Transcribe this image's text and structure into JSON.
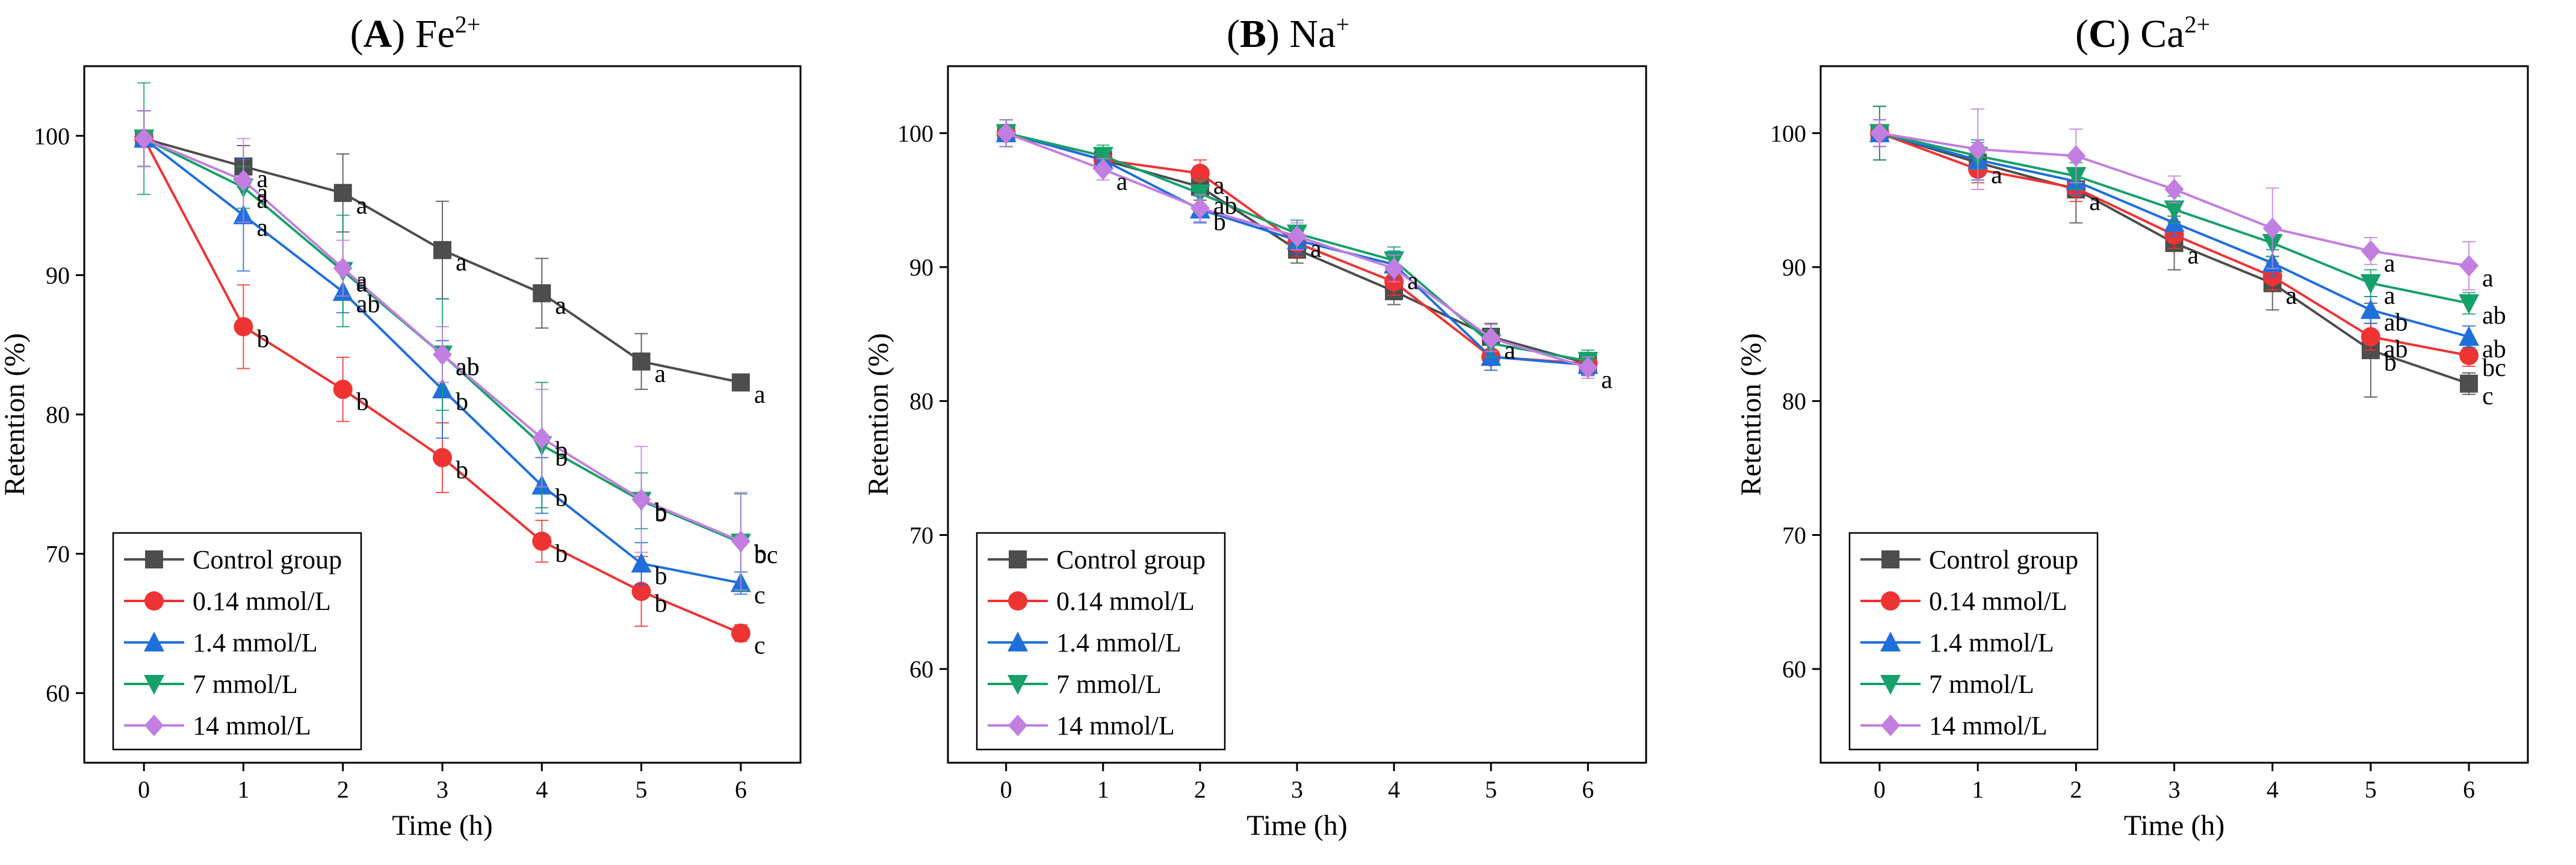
{
  "chart_data": [
    {
      "type": "line",
      "panel_letter": "A",
      "title_ion": "Fe",
      "title_sup": "2+",
      "xlabel": "Time (h)",
      "ylabel": "Retention (%)",
      "xlim": [
        -0.6,
        6.6
      ],
      "ylim": [
        55,
        105
      ],
      "x": [
        0,
        1,
        2,
        3,
        4,
        5,
        6
      ],
      "xticks": [
        "0",
        "1",
        "2",
        "3",
        "4",
        "5",
        "6"
      ],
      "yticks": [
        "60",
        "70",
        "80",
        "90",
        "100"
      ],
      "legend_position": "bottom-left",
      "series": [
        {
          "name": "Control group",
          "color": "#4d4d4d",
          "marker": "square",
          "values": [
            99.8,
            97.8,
            95.9,
            91.8,
            88.7,
            83.8,
            82.3
          ],
          "errors": [
            2.0,
            1.5,
            2.8,
            3.5,
            2.5,
            2.0,
            0.6
          ],
          "letters": [
            "",
            "a",
            "a",
            "a",
            "a",
            "a",
            "a"
          ]
        },
        {
          "name": "0.14 mmol/L",
          "color": "#ee3333",
          "marker": "circle",
          "values": [
            99.8,
            86.3,
            81.8,
            76.9,
            70.9,
            67.3,
            64.3
          ],
          "errors": [
            2.0,
            3.0,
            2.3,
            2.5,
            1.5,
            2.5,
            0.6
          ],
          "letters": [
            "",
            "b",
            "b",
            "b",
            "b",
            "b",
            "c"
          ]
        },
        {
          "name": "1.4 mmol/L",
          "color": "#1f6fdb",
          "marker": "triangle-up",
          "values": [
            99.8,
            94.3,
            88.8,
            81.8,
            74.9,
            69.3,
            67.9
          ],
          "errors": [
            2.0,
            4.0,
            1.5,
            3.5,
            2.0,
            1.5,
            0.8
          ],
          "letters": [
            "",
            "a",
            "ab",
            "b",
            "b",
            "b",
            "c"
          ]
        },
        {
          "name": "7 mmol/L",
          "color": "#16a06a",
          "marker": "triangle-down",
          "values": [
            99.8,
            96.3,
            90.3,
            84.3,
            77.8,
            73.8,
            70.8
          ],
          "errors": [
            4.0,
            1.5,
            4.0,
            4.0,
            4.5,
            2.0,
            3.5
          ],
          "letters": [
            "",
            "a",
            "a",
            "ab",
            "b",
            "b",
            "bc"
          ]
        },
        {
          "name": "14 mmol/L",
          "color": "#c27ee0",
          "marker": "diamond",
          "values": [
            99.8,
            96.8,
            90.5,
            84.3,
            78.3,
            73.9,
            70.9
          ],
          "errors": [
            2.0,
            3.0,
            2.0,
            2.0,
            3.5,
            3.8,
            3.5
          ],
          "letters": [
            "",
            "a",
            "a",
            "ab",
            "b",
            "b",
            "b"
          ]
        }
      ]
    },
    {
      "type": "line",
      "panel_letter": "B",
      "title_ion": "Na",
      "title_sup": "+",
      "xlabel": "Time (h)",
      "ylabel": "Retention (%)",
      "xlim": [
        -0.6,
        6.6
      ],
      "ylim": [
        53,
        105
      ],
      "x": [
        0,
        1,
        2,
        3,
        4,
        5,
        6
      ],
      "xticks": [
        "0",
        "1",
        "2",
        "3",
        "4",
        "5",
        "6"
      ],
      "yticks": [
        "60",
        "70",
        "80",
        "90",
        "100"
      ],
      "legend_position": "bottom-left",
      "series": [
        {
          "name": "Control group",
          "color": "#4d4d4d",
          "marker": "square",
          "values": [
            100.0,
            98.0,
            96.0,
            91.3,
            88.2,
            84.8,
            82.8
          ],
          "errors": [
            1.0,
            0.8,
            1.0,
            1.0,
            1.0,
            1.0,
            0.8
          ],
          "letters": [
            "",
            "",
            "",
            "",
            "",
            "",
            ""
          ]
        },
        {
          "name": "0.14 mmol/L",
          "color": "#ee3333",
          "marker": "circle",
          "values": [
            100.0,
            98.0,
            97.0,
            91.8,
            88.9,
            83.3,
            82.8
          ],
          "errors": [
            1.0,
            0.8,
            1.0,
            1.0,
            1.0,
            1.0,
            0.8
          ],
          "letters": [
            "",
            "",
            "a",
            "",
            "",
            "",
            ""
          ]
        },
        {
          "name": "1.4 mmol/L",
          "color": "#1f6fdb",
          "marker": "triangle-up",
          "values": [
            100.0,
            98.0,
            94.3,
            92.0,
            90.2,
            83.3,
            82.7
          ],
          "errors": [
            1.0,
            0.8,
            1.0,
            1.0,
            1.0,
            1.0,
            0.8
          ],
          "letters": [
            "",
            "",
            "b",
            "",
            "",
            "",
            ""
          ]
        },
        {
          "name": "7 mmol/L",
          "color": "#16a06a",
          "marker": "triangle-down",
          "values": [
            100.0,
            98.3,
            95.5,
            92.5,
            90.5,
            84.3,
            83.0
          ],
          "errors": [
            1.0,
            0.8,
            1.0,
            1.0,
            1.0,
            1.0,
            0.8
          ],
          "letters": [
            "",
            "",
            "ab",
            "",
            "",
            "",
            ""
          ]
        },
        {
          "name": "14 mmol/L",
          "color": "#c27ee0",
          "marker": "diamond",
          "values": [
            100.0,
            97.3,
            94.4,
            92.3,
            89.9,
            84.7,
            82.5
          ],
          "errors": [
            1.0,
            0.8,
            1.0,
            1.0,
            1.0,
            1.0,
            0.8
          ],
          "letters": [
            "",
            "a",
            "",
            "a",
            "a",
            "a",
            "a"
          ]
        }
      ]
    },
    {
      "type": "line",
      "panel_letter": "C",
      "title_ion": "Ca",
      "title_sup": "2+",
      "xlabel": "Time (h)",
      "ylabel": "Retention (%)",
      "xlim": [
        -0.6,
        6.6
      ],
      "ylim": [
        53,
        105
      ],
      "x": [
        0,
        1,
        2,
        3,
        4,
        5,
        6
      ],
      "xticks": [
        "0",
        "1",
        "2",
        "3",
        "4",
        "5",
        "6"
      ],
      "yticks": [
        "60",
        "70",
        "80",
        "90",
        "100"
      ],
      "legend_position": "bottom-left",
      "series": [
        {
          "name": "Control group",
          "color": "#4d4d4d",
          "marker": "square",
          "values": [
            100.0,
            97.8,
            95.8,
            91.8,
            88.8,
            83.8,
            81.3
          ],
          "errors": [
            2.0,
            1.0,
            2.5,
            2.0,
            2.0,
            3.5,
            0.8
          ],
          "letters": [
            "",
            "a",
            "a",
            "a",
            "a",
            "b",
            "c"
          ]
        },
        {
          "name": "0.14 mmol/L",
          "color": "#ee3333",
          "marker": "circle",
          "values": [
            100.0,
            97.3,
            95.9,
            92.4,
            89.3,
            84.8,
            83.4
          ],
          "errors": [
            1.0,
            1.0,
            1.0,
            1.0,
            1.0,
            1.0,
            0.8
          ],
          "letters": [
            "",
            "",
            "",
            "",
            "",
            "ab",
            "bc"
          ]
        },
        {
          "name": "1.4 mmol/L",
          "color": "#1f6fdb",
          "marker": "triangle-up",
          "values": [
            100.0,
            98.0,
            96.4,
            93.3,
            90.3,
            86.8,
            84.8
          ],
          "errors": [
            1.0,
            1.5,
            1.0,
            1.0,
            1.0,
            1.0,
            0.8
          ],
          "letters": [
            "",
            "",
            "",
            "",
            "",
            "ab",
            "ab"
          ]
        },
        {
          "name": "7 mmol/L",
          "color": "#16a06a",
          "marker": "triangle-down",
          "values": [
            100.0,
            98.3,
            96.8,
            94.3,
            91.8,
            88.8,
            87.3
          ],
          "errors": [
            2.0,
            1.0,
            1.0,
            1.0,
            1.0,
            1.0,
            0.8
          ],
          "letters": [
            "",
            "",
            "",
            "",
            "",
            "a",
            "ab"
          ]
        },
        {
          "name": "14 mmol/L",
          "color": "#c27ee0",
          "marker": "diamond",
          "values": [
            100.0,
            98.8,
            98.3,
            95.8,
            92.9,
            91.2,
            90.1
          ],
          "errors": [
            1.0,
            3.0,
            2.0,
            1.0,
            3.0,
            1.0,
            1.8
          ],
          "letters": [
            "",
            "",
            "",
            "",
            "",
            "a",
            "a"
          ]
        }
      ]
    }
  ]
}
